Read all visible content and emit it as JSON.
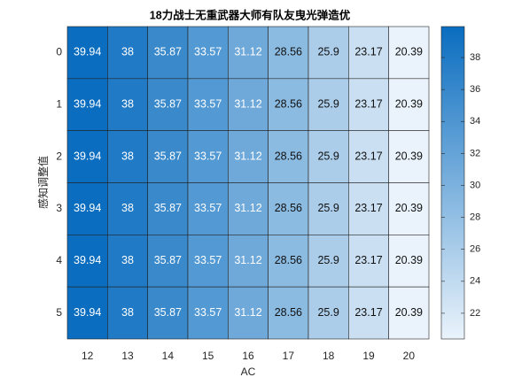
{
  "chart_data": {
    "type": "heatmap",
    "title": "18力战士无重武器大师有队友曳光弹造优",
    "x_label": "AC",
    "y_label": "感知调整值",
    "x_categories": [
      "12",
      "13",
      "14",
      "15",
      "16",
      "17",
      "18",
      "19",
      "20"
    ],
    "y_categories": [
      "0",
      "1",
      "2",
      "3",
      "4",
      "5"
    ],
    "values": [
      [
        39.94,
        38,
        35.87,
        33.57,
        31.12,
        28.56,
        25.9,
        23.17,
        20.39
      ],
      [
        39.94,
        38,
        35.87,
        33.57,
        31.12,
        28.56,
        25.9,
        23.17,
        20.39
      ],
      [
        39.94,
        38,
        35.87,
        33.57,
        31.12,
        28.56,
        25.9,
        23.17,
        20.39
      ],
      [
        39.94,
        38,
        35.87,
        33.57,
        31.12,
        28.56,
        25.9,
        23.17,
        20.39
      ],
      [
        39.94,
        38,
        35.87,
        33.57,
        31.12,
        28.56,
        25.9,
        23.17,
        20.39
      ],
      [
        39.94,
        38,
        35.87,
        33.57,
        31.12,
        28.56,
        25.9,
        23.17,
        20.39
      ]
    ],
    "colormap": [
      "#eaf3fb",
      "#0a6dbf"
    ],
    "clim": [
      20.39,
      39.94
    ],
    "cticks": [
      22,
      24,
      26,
      28,
      30,
      32,
      34,
      36,
      38
    ]
  }
}
